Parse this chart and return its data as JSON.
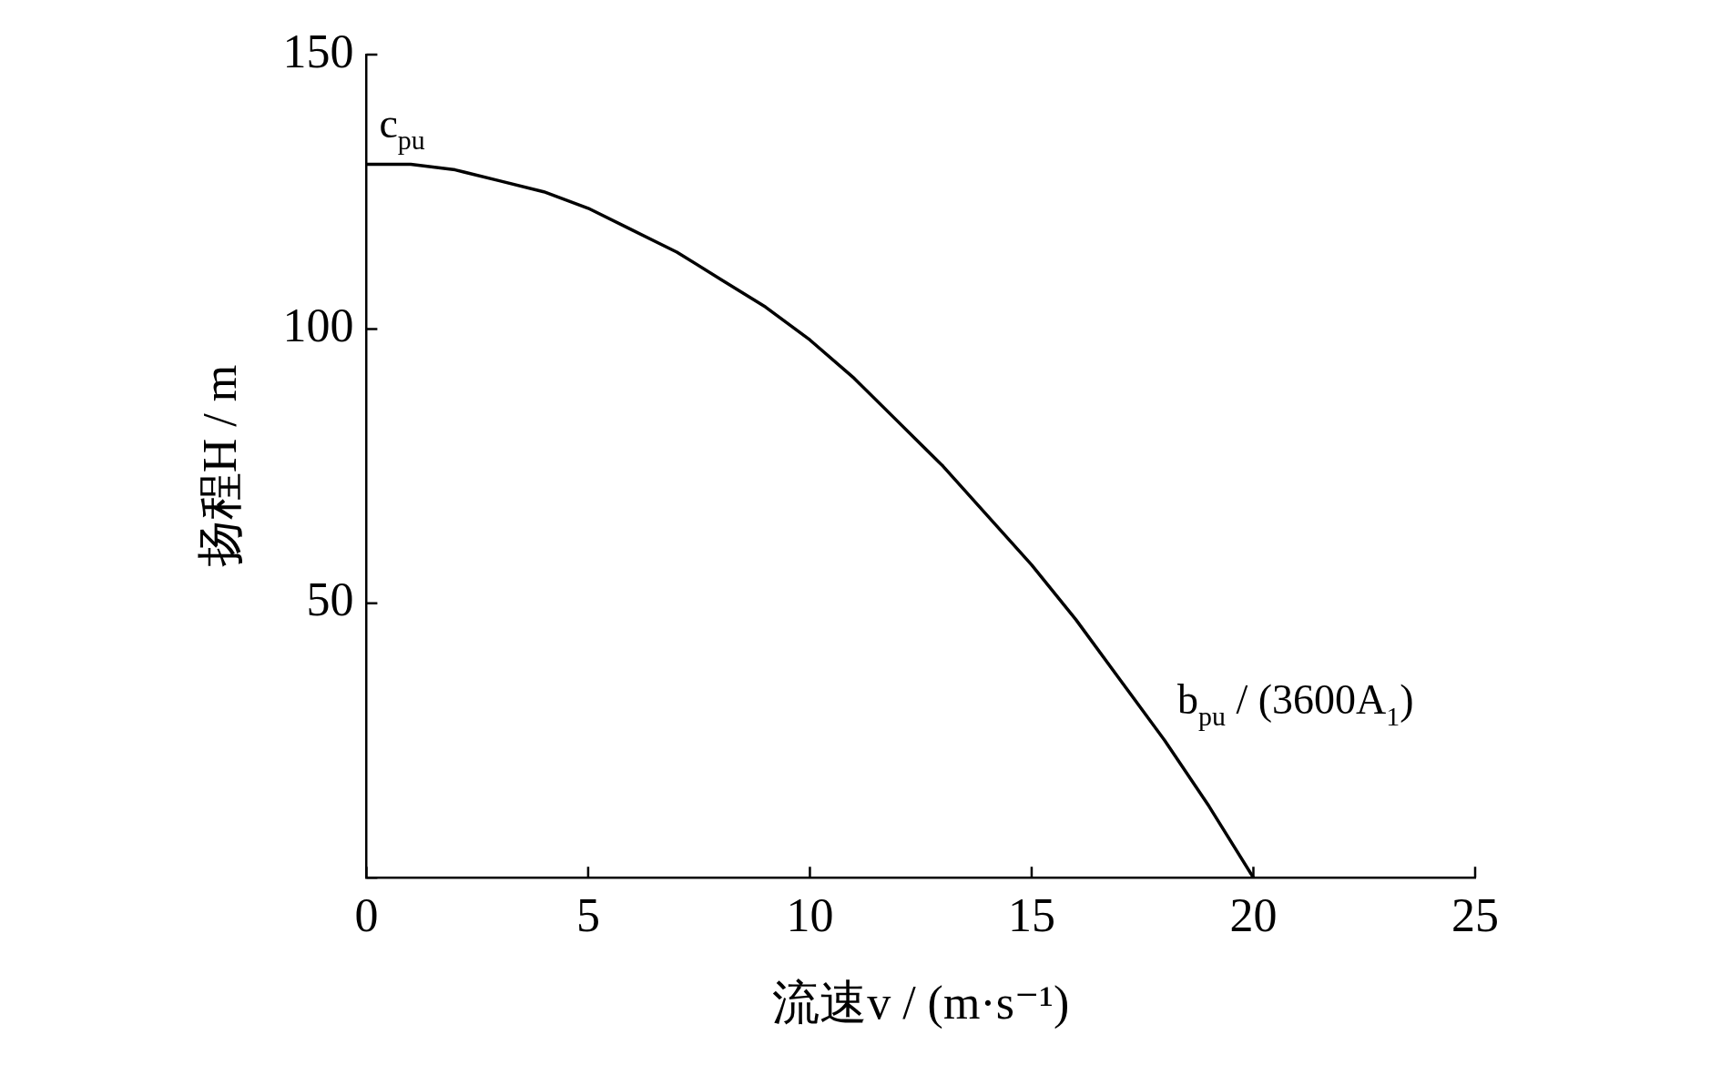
{
  "chart_data": {
    "type": "line",
    "xlabel": "流速v / (m·s⁻¹)",
    "ylabel": "扬程H / m",
    "x": [
      0,
      1,
      2,
      3,
      4,
      5,
      6,
      7,
      8,
      9,
      10,
      11,
      12,
      13,
      14,
      15,
      16,
      17,
      18,
      19,
      20
    ],
    "series": [
      {
        "color": "#000000",
        "values": [
          130,
          130,
          129,
          127,
          125,
          122,
          118,
          114,
          109,
          104,
          98,
          91,
          83,
          75,
          66,
          57,
          47,
          36,
          25,
          13,
          0
        ]
      }
    ],
    "xlim": [
      0,
      25
    ],
    "ylim": [
      0,
      150
    ],
    "xticks": [
      0,
      5,
      10,
      15,
      20,
      25
    ],
    "yticks": [
      {
        "value": 0,
        "label": null
      },
      50,
      100,
      150
    ],
    "grid": false,
    "legend": false,
    "marker": "none",
    "line_style": "solid",
    "annotations": [
      {
        "text": "c$_{pu}$",
        "x": 0,
        "y": 130
      },
      {
        "text": "b$_{pu}$ / (3600A$_{1}$)",
        "x": 18,
        "y": 25
      }
    ]
  }
}
